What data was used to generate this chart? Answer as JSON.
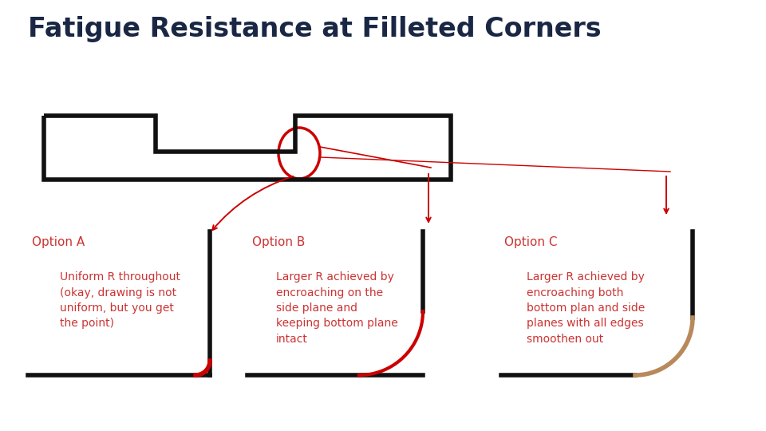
{
  "title": "Fatigue Resistance at Filleted Corners",
  "title_color": "#1a2744",
  "title_fontsize": 24,
  "title_fontweight": "bold",
  "bg_color": "#ffffff",
  "option_a_label": "Option A",
  "option_b_label": "Option B",
  "option_c_label": "Option C",
  "option_text_a": "Uniform R throughout\n(okay, drawing is not\nuniform, but you get\nthe point)",
  "option_text_b": "Larger R achieved by\nencroaching on the\nside plane and\nkeeping bottom plane\nintact",
  "option_text_c": "Larger R achieved by\nencroaching both\nbottom plan and side\nplanes with all edges\nsmoothen out",
  "red_color": "#cc0000",
  "tan_color": "#b8895a",
  "black_color": "#111111",
  "label_color": "#cc3333",
  "shape_lw": 4.0,
  "red_lw": 2.5,
  "tan_lw": 3.5
}
